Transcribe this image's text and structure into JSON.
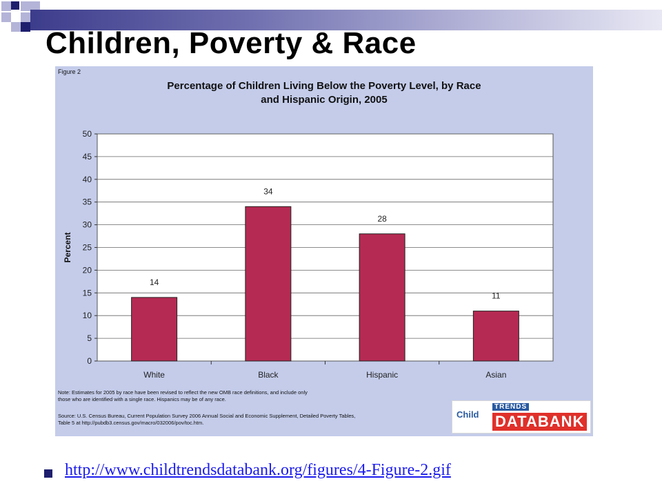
{
  "slide": {
    "title": "Children, Poverty & Race",
    "link_text": "http://www.childtrendsdatabank.org/figures/4-Figure-2.gif",
    "accent_color": "#1e1e6e"
  },
  "figure": {
    "label": "Figure 2",
    "title_line1": "Percentage of Children Living Below the Poverty Level, by Race",
    "title_line2": "and Hispanic Origin, 2005",
    "background_color": "#c4ccea",
    "note_line1": "Note: Estimates for 2005 by race have been revised to reflect the new OMB race definitions, and include only",
    "note_line2": "those who are identified with a single race. Hispanics may be of any race.",
    "source_line1": "Source: U.S. Census Bureau, Current Population Survey 2006 Annual Social and Economic Supplement, Detailed Poverty Tables,",
    "source_line2": "Table 5 at http://pubdb3.census.gov/macro/032006/pov/toc.htm.",
    "logo": {
      "child": "Child",
      "trends": "TRENDS",
      "databank": "DATABANK"
    }
  },
  "chart_data": {
    "type": "bar",
    "title": "Percentage of Children Living Below the Poverty Level, by Race and Hispanic Origin, 2005",
    "xlabel": "",
    "ylabel": "Percent",
    "categories": [
      "White",
      "Black",
      "Hispanic",
      "Asian"
    ],
    "values": [
      14,
      34,
      28,
      11
    ],
    "data_labels": [
      "14",
      "34",
      "28",
      "11"
    ],
    "ylim": [
      0,
      50
    ],
    "yticks": [
      0,
      5,
      10,
      15,
      20,
      25,
      30,
      35,
      40,
      45,
      50
    ],
    "grid": true,
    "legend": "none",
    "bar_color": "#b52a52"
  }
}
